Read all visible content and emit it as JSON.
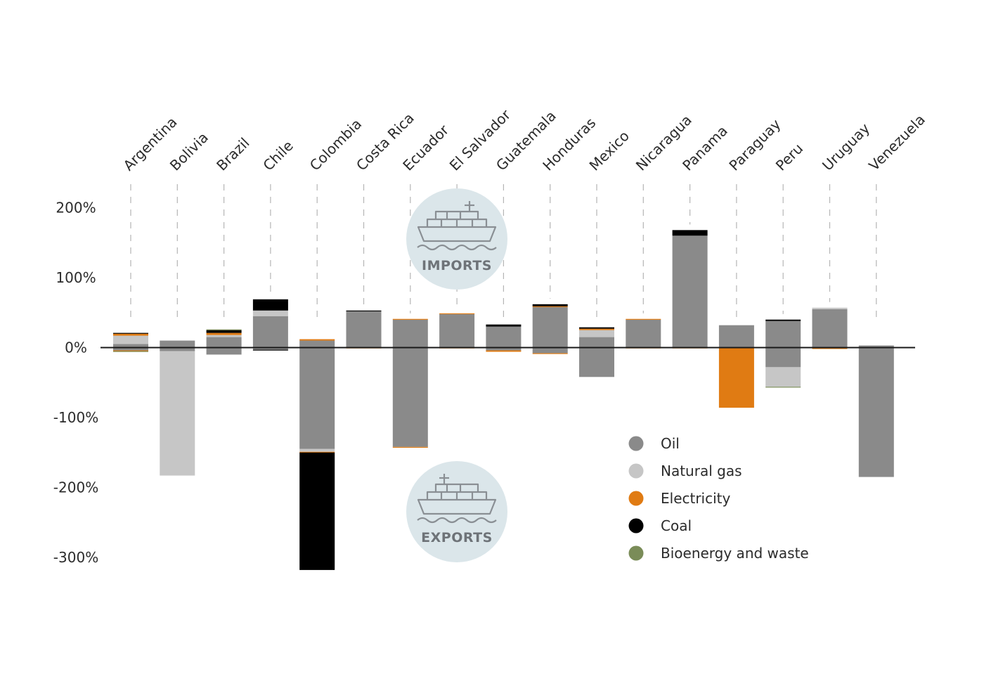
{
  "chart_data": {
    "type": "bar",
    "stacked": true,
    "categories": [
      "Argentina",
      "Bolivia",
      "Brazil",
      "Chile",
      "Colombia",
      "Costa Rica",
      "Ecuador",
      "El Salvador",
      "Guatemala",
      "Honduras",
      "Mexico",
      "Nicaragua",
      "Panama",
      "Paraguay",
      "Peru",
      "Uruguay",
      "Venezuela"
    ],
    "yticks": [
      200,
      100,
      0,
      -100,
      -200,
      -300
    ],
    "ytick_labels": [
      "200%",
      "100%",
      "0%",
      "-100%",
      "-200%",
      "-300%"
    ],
    "ylim": [
      -330,
      240
    ],
    "series": [
      {
        "name": "Oil",
        "color": "#8a8a8a",
        "values": [
          5,
          -5,
          15,
          45,
          -145,
          52,
          -142,
          48,
          -4,
          58,
          -40,
          40,
          160,
          32,
          38,
          55,
          -185
        ],
        "pos_values": [
          5,
          10,
          15,
          45,
          10,
          52,
          40,
          48,
          30,
          58,
          15,
          40,
          160,
          32,
          38,
          55,
          3
        ],
        "neg_values": [
          -4,
          -5,
          -10,
          -3,
          -145,
          0,
          -142,
          0,
          -4,
          -8,
          -42,
          0,
          0,
          0,
          -28,
          0,
          -185
        ]
      },
      {
        "name": "Natural gas",
        "color": "#c6c6c6",
        "pos_values": [
          12,
          0,
          3,
          8,
          0,
          0,
          0,
          0,
          0,
          0,
          10,
          0,
          0,
          0,
          0,
          2,
          0
        ],
        "neg_values": [
          0,
          -178,
          0,
          0,
          -4,
          0,
          0,
          0,
          0,
          0,
          0,
          0,
          0,
          0,
          -28,
          0,
          0
        ]
      },
      {
        "name": "Electricity",
        "color": "#e07b13",
        "pos_values": [
          3,
          0,
          3,
          0,
          2,
          0,
          1,
          1,
          0,
          1,
          2,
          1,
          0,
          0,
          0,
          0,
          0
        ],
        "neg_values": [
          -1,
          0,
          0,
          0,
          -1,
          -1,
          -1,
          -1,
          -2,
          -1,
          0,
          -1,
          -1,
          -86,
          0,
          -2,
          0
        ]
      },
      {
        "name": "Coal",
        "color": "#000000",
        "pos_values": [
          1,
          0,
          4,
          16,
          0,
          1,
          0,
          0,
          3,
          3,
          2,
          0,
          8,
          0,
          2,
          0,
          0
        ],
        "neg_values": [
          0,
          0,
          0,
          -1,
          -168,
          0,
          0,
          0,
          0,
          0,
          0,
          0,
          0,
          0,
          0,
          0,
          0
        ]
      },
      {
        "name": "Bioenergy and waste",
        "color": "#7a8c58",
        "pos_values": [
          0,
          0,
          1,
          0,
          0,
          0,
          0,
          0,
          0,
          0,
          0,
          0,
          0,
          0,
          0,
          0,
          0
        ],
        "neg_values": [
          -1,
          0,
          0,
          0,
          0,
          0,
          0,
          0,
          0,
          0,
          0,
          0,
          0,
          0,
          -1,
          0,
          0
        ]
      }
    ],
    "legend": [
      "Oil",
      "Natural gas",
      "Electricity",
      "Coal",
      "Bioenergy and waste"
    ],
    "legend_placement": "bottom-right",
    "annotations": {
      "imports": "IMPORTS",
      "exports": "EXPORTS"
    }
  }
}
